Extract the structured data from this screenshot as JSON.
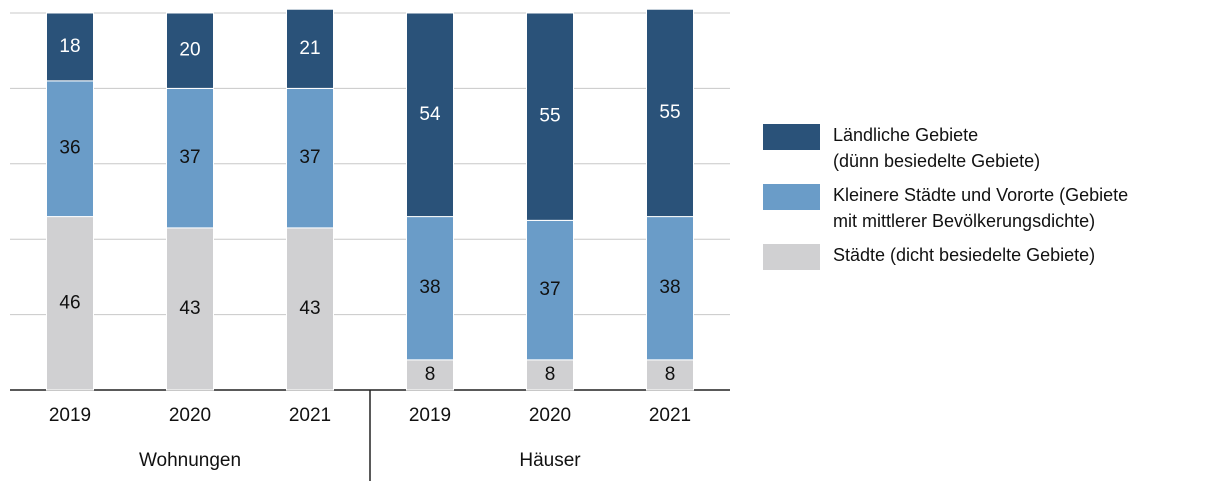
{
  "chart_data": {
    "type": "stacked_bar",
    "categories": [
      "2019",
      "2020",
      "2021",
      "2019",
      "2020",
      "2021"
    ],
    "groups": [
      "Wohnungen",
      "Häuser"
    ],
    "series": [
      {
        "name": "Städte (dicht besiedelte Gebiete)",
        "color": "#d0d0d2",
        "values": [
          46,
          43,
          43,
          8,
          8,
          8
        ]
      },
      {
        "name": "Kleinere Städte und Vororte (Gebiete\nmit mittlerer Bevölkerungsdichte)",
        "color": "#6a9cc8",
        "values": [
          36,
          37,
          37,
          38,
          37,
          38
        ]
      },
      {
        "name": "Ländliche Gebiete\n(dünn besiedelte Gebiete)",
        "color": "#2a5279",
        "values": [
          18,
          20,
          21,
          54,
          55,
          55
        ]
      }
    ],
    "ylim": [
      0,
      100
    ],
    "yticks": [
      0,
      20,
      40,
      60,
      80,
      100
    ],
    "grid": true,
    "legend": "right"
  }
}
